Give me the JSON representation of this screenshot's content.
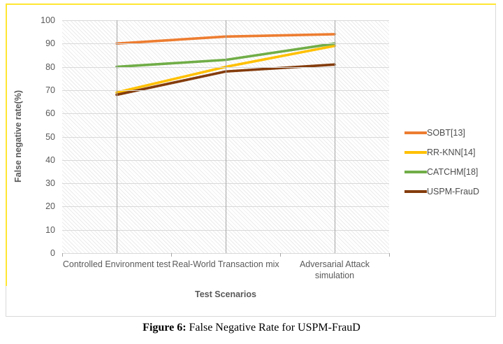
{
  "chart": {
    "frame_border_color": "#D9D9D9",
    "highlight_border_color": "#FFE633",
    "h_gridline_color": "#D9D9D9",
    "v_gridline_color": "#A6A6A6",
    "tick_color": "#A6A6A6",
    "text_color": "#595959"
  },
  "chart_data": {
    "type": "line",
    "title": "",
    "xlabel": "Test Scenarios",
    "ylabel": "False negative rate(%)",
    "categories": [
      "Controlled Environment test",
      "Real-World Transaction mix",
      "Adversarial Attack simulation"
    ],
    "series": [
      {
        "name": "SOBT[13]",
        "color": "#ED7D31",
        "values": [
          90,
          93,
          94
        ]
      },
      {
        "name": "RR-KNN[14]",
        "color": "#FFC000",
        "values": [
          69,
          80,
          89
        ]
      },
      {
        "name": "CATCHM[18]",
        "color": "#70AD47",
        "values": [
          80,
          83,
          90
        ]
      },
      {
        "name": "USPM-FrauD",
        "color": "#843C0C",
        "values": [
          68,
          78,
          81
        ]
      }
    ],
    "ylim": [
      0,
      100
    ],
    "ytick_step": 10,
    "grid": true,
    "plot_fill_pattern": "light-diagonal-hatch",
    "legend_position": "right"
  },
  "caption": {
    "label": "Figure 6:",
    "text": "False Negative Rate for USPM-FrauD"
  }
}
